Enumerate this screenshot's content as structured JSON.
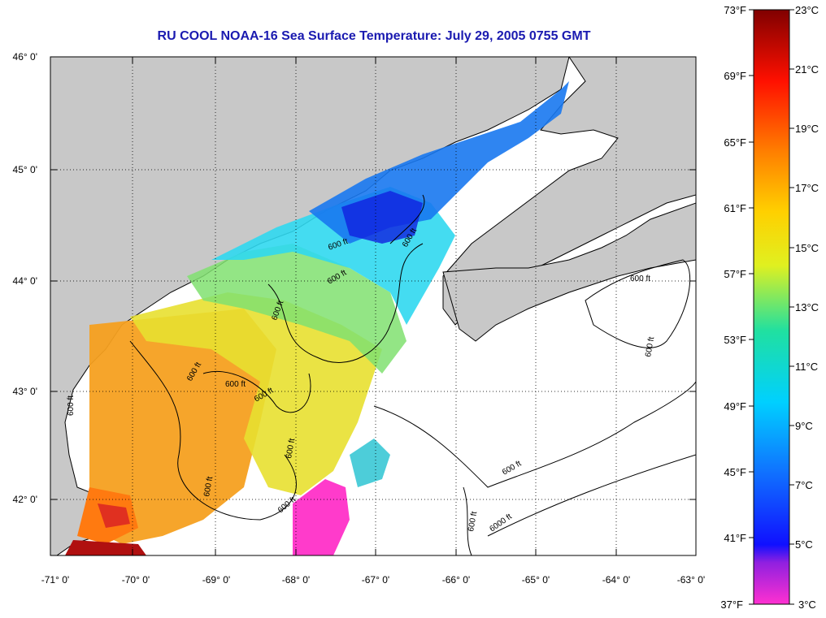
{
  "title": "RU COOL  NOAA-16  Sea Surface Temperature:  July 29, 2005 0755 GMT",
  "lat_labels": [
    "46° 0'",
    "45° 0'",
    "44° 0'",
    "43° 0'",
    "42° 0'"
  ],
  "lon_labels": [
    "-71° 0'",
    "-70° 0'",
    "-69° 0'",
    "-68° 0'",
    "-67° 0'",
    "-66° 0'",
    "-65° 0'",
    "-64° 0'",
    "-63° 0'"
  ],
  "colorbar": {
    "f_labels": [
      "73°F",
      "69°F",
      "65°F",
      "61°F",
      "57°F",
      "53°F",
      "49°F",
      "45°F",
      "41°F",
      "37°F"
    ],
    "c_labels": [
      "23°C",
      "21°C",
      "19°C",
      "17°C",
      "15°C",
      "13°C",
      "11°C",
      "9°C",
      "7°C",
      "5°C",
      "3°C"
    ],
    "range_c": [
      3,
      23
    ]
  },
  "contour_labels": [
    "600 ft",
    "600 ft",
    "600 ft",
    "600 ft",
    "600 ft",
    "600 ft",
    "600 ft",
    "600 ft",
    "600 ft",
    "600 ft",
    "600 ft",
    "600 ft",
    "600 ft",
    "600 ft",
    "600 ft",
    "6000 ft"
  ],
  "colors": {
    "land": "#c8c8c8",
    "no_data": "#ffffff",
    "title": "#1a1ab0"
  }
}
